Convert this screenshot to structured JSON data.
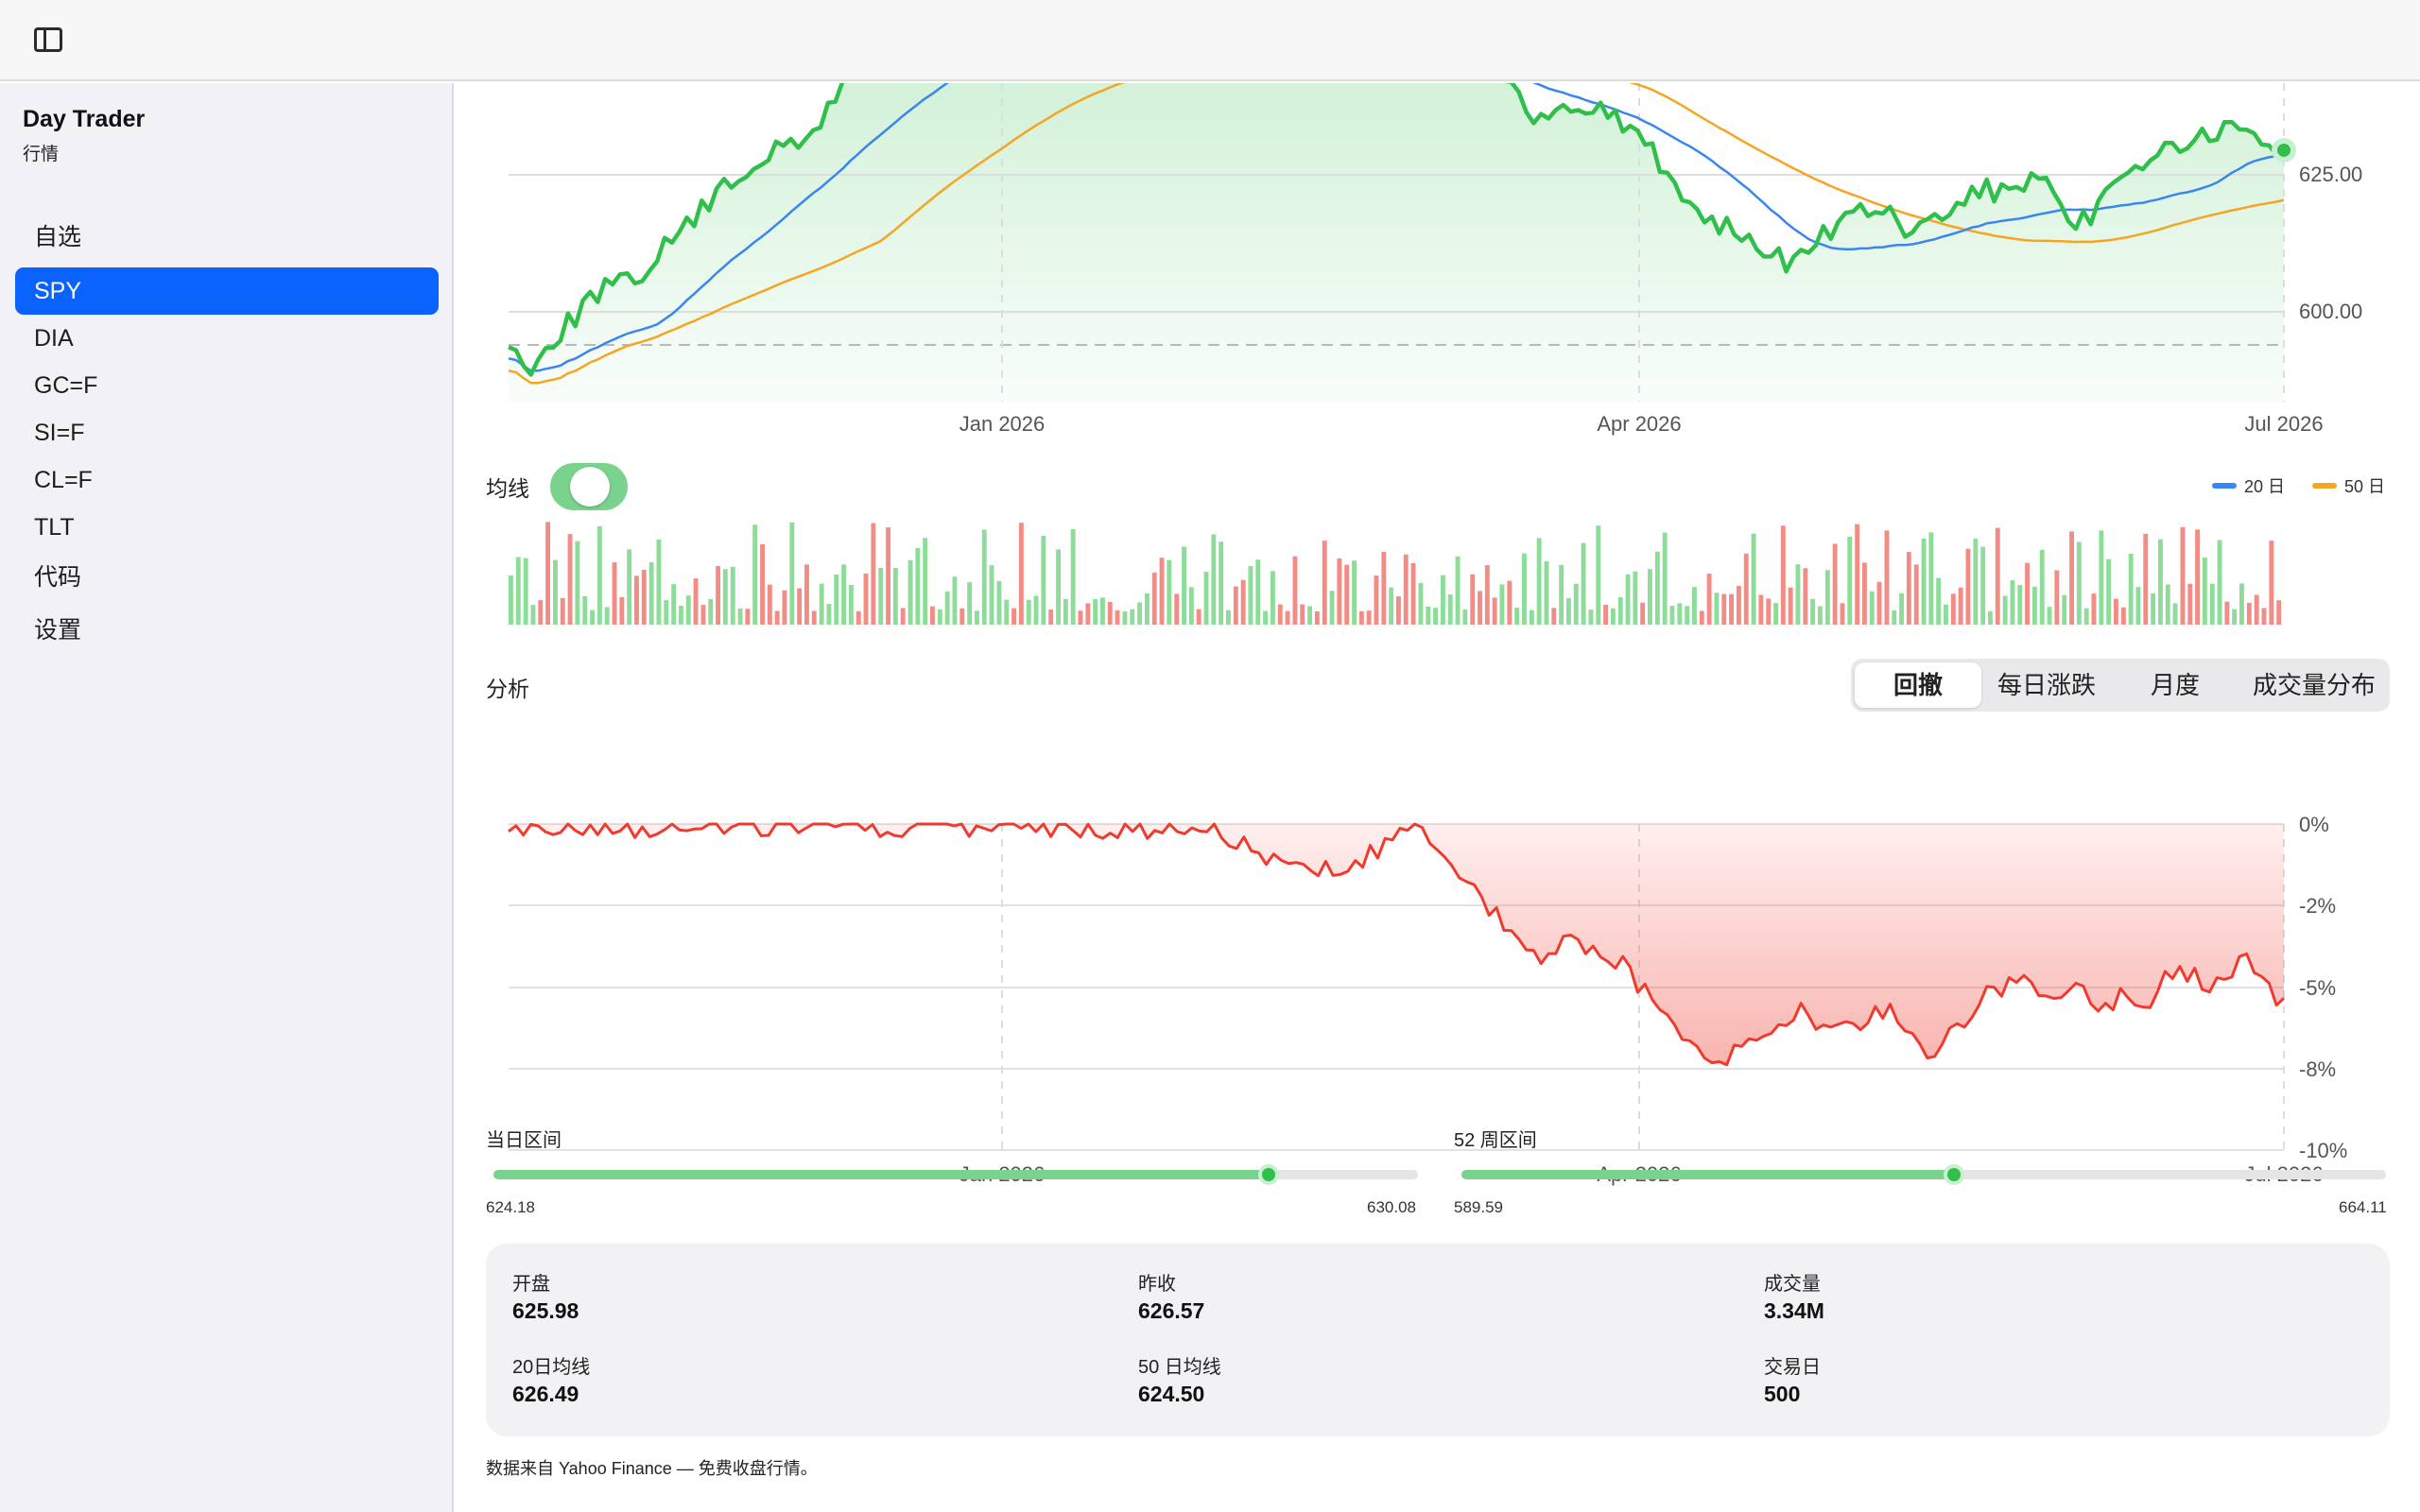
{
  "app": {
    "title": "Day Trader",
    "subtitle": "行情"
  },
  "sidebar": {
    "items": [
      {
        "label": "自选",
        "active": false
      },
      {
        "label": "SPY",
        "active": true
      },
      {
        "label": "DIA",
        "active": false
      },
      {
        "label": "GC=F",
        "active": false
      },
      {
        "label": "SI=F",
        "active": false
      },
      {
        "label": "CL=F",
        "active": false
      },
      {
        "label": "TLT",
        "active": false
      },
      {
        "label": "代码",
        "active": false
      },
      {
        "label": "设置",
        "active": false
      }
    ]
  },
  "colors": {
    "accent": "#0a63ff",
    "up": "#2fbf4a",
    "down": "#f03a2e",
    "ma20": "#3a86f0",
    "ma50": "#f4a623"
  },
  "price_chart": {
    "y_ticks": [
      "625.00",
      "600.00"
    ],
    "x_ticks": [
      "Jan 2026",
      "Apr 2026",
      "Jul 2026"
    ]
  },
  "moving_average": {
    "label": "均线",
    "enabled": true,
    "legend": [
      "20 日",
      "50 日"
    ]
  },
  "analysis": {
    "label": "分析",
    "tabs": [
      {
        "label": "回撤",
        "active": true
      },
      {
        "label": "每日涨跌",
        "active": false
      },
      {
        "label": "月度",
        "active": false
      },
      {
        "label": "成交量分布",
        "active": false
      }
    ]
  },
  "drawdown_chart": {
    "y_ticks": [
      "0%",
      "-2%",
      "-5%",
      "-8%",
      "-10%"
    ],
    "x_ticks": [
      "Jan 2026",
      "Apr 2026",
      "Jul 2026"
    ]
  },
  "day_range": {
    "label": "当日区间",
    "low": "624.18",
    "high": "630.08",
    "position": 0.838
  },
  "week52_range": {
    "label": "52 周区间",
    "low": "589.59",
    "high": "664.11",
    "position": 0.533
  },
  "stats": {
    "open_label": "开盘",
    "open": "625.98",
    "prev_close_label": "昨收",
    "prev_close": "626.57",
    "volume_label": "成交量",
    "volume": "3.34M",
    "ma20_label": "20日均线",
    "ma20": "626.49",
    "ma50_label": "50 日均线",
    "ma50": "624.50",
    "trading_days_label": "交易日",
    "trading_days": "500"
  },
  "footer": "数据来自 Yahoo Finance — 免费收盘行情。"
}
